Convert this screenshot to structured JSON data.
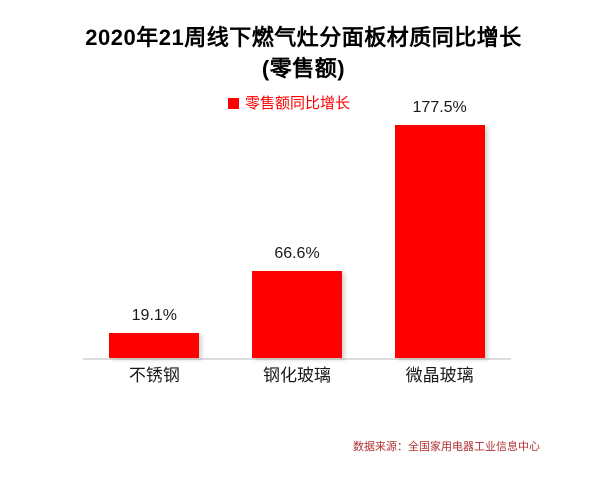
{
  "title": {
    "line1": "2020年21周线下燃气灶分面板材质同比增长",
    "line2": "(零售额)"
  },
  "legend": {
    "label": "零售额同比增长"
  },
  "source": "数据来源：全国家用电器工业信息中心",
  "colors": {
    "bar": "#fe0000",
    "legend_text": "#fe0000",
    "title_text": "#000000",
    "label_text": "#1a1a1a",
    "axis_line": "#dcdcdc",
    "source_text": "#b03030"
  },
  "chart_data": {
    "type": "bar",
    "title": "2020年21周线下燃气灶分面板材质同比增长(零售额)",
    "categories": [
      "不锈钢",
      "钢化玻璃",
      "微晶玻璃"
    ],
    "values": [
      19.1,
      66.6,
      177.5
    ],
    "value_labels": [
      "19.1%",
      "66.6%",
      "177.5%"
    ],
    "series_name": "零售额同比增长",
    "xlabel": "",
    "ylabel": "",
    "unit": "%",
    "ylim": [
      0,
      180
    ],
    "grid": false,
    "legend_position": "top-center",
    "bar_color": "#fe0000"
  }
}
